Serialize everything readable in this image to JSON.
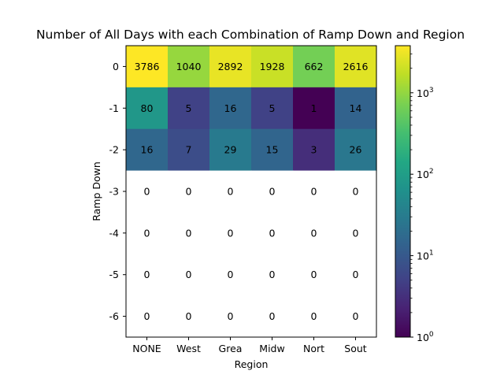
{
  "chart_data": {
    "type": "heatmap",
    "title": "Number of All Days with each Combination of Ramp Down and Region",
    "xlabel": "Region",
    "ylabel": "Ramp Down",
    "x_categories": [
      "NONE",
      "West",
      "Grea",
      "Midw",
      "Nort",
      "Sout"
    ],
    "y_categories": [
      "0",
      "-1",
      "-2",
      "-3",
      "-4",
      "-5",
      "-6"
    ],
    "values": [
      [
        3786,
        1040,
        2892,
        1928,
        662,
        2616
      ],
      [
        80,
        5,
        16,
        5,
        1,
        14
      ],
      [
        16,
        7,
        29,
        15,
        3,
        26
      ],
      [
        0,
        0,
        0,
        0,
        0,
        0
      ],
      [
        0,
        0,
        0,
        0,
        0,
        0
      ],
      [
        0,
        0,
        0,
        0,
        0,
        0
      ],
      [
        0,
        0,
        0,
        0,
        0,
        0
      ]
    ],
    "colormap": "viridis",
    "color_scale": "log",
    "color_range": [
      1,
      3786
    ],
    "colorbar_ticks": [
      {
        "value": 1,
        "base": "10",
        "exp": "0"
      },
      {
        "value": 10,
        "base": "10",
        "exp": "1"
      },
      {
        "value": 100,
        "base": "10",
        "exp": "2"
      },
      {
        "value": 1000,
        "base": "10",
        "exp": "3"
      }
    ],
    "colorbar_minor_ticks": [
      2,
      3,
      4,
      5,
      6,
      7,
      8,
      9,
      20,
      30,
      40,
      50,
      60,
      70,
      80,
      90,
      200,
      300,
      400,
      500,
      600,
      700,
      800,
      900,
      2000,
      3000
    ],
    "zero_cells_color": "#ffffff",
    "grid": false,
    "colorbar_position": "right"
  }
}
